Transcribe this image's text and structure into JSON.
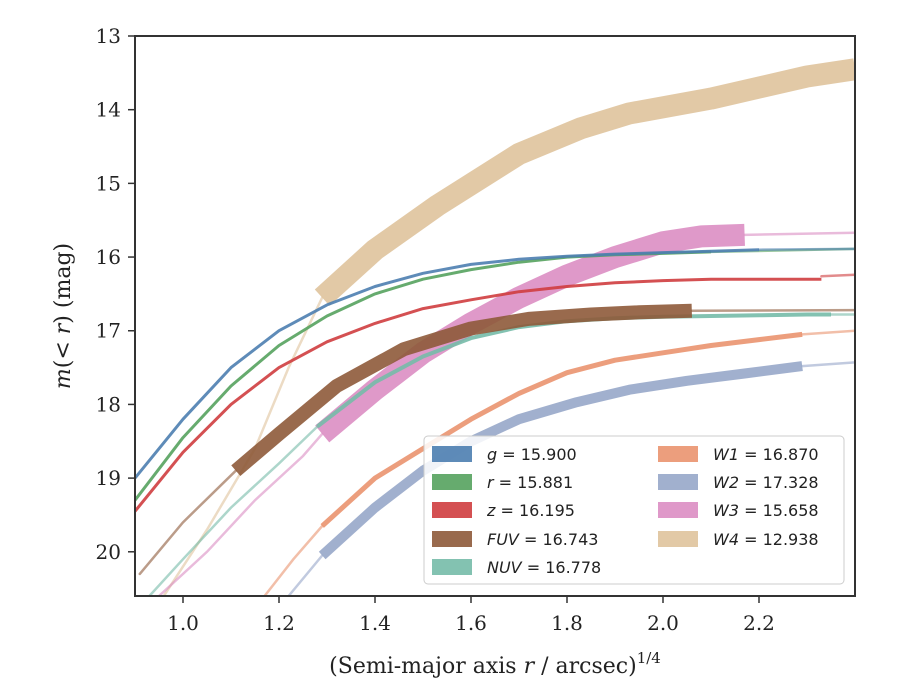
{
  "chart_data": {
    "type": "line",
    "xlabel": "(Semi-major axis r / arcsec)^1/4",
    "ylabel": "m(<r) (mag)",
    "xlim": [
      0.9,
      2.4
    ],
    "ylim": [
      20.6,
      13
    ],
    "y_inverted": true,
    "grid": false,
    "legend_position": "lower-right",
    "xticks": [
      1.0,
      1.2,
      1.4,
      1.6,
      1.8,
      2.0,
      2.2
    ],
    "xtick_labels": [
      "1.0",
      "1.2",
      "1.4",
      "1.6",
      "1.8",
      "2.0",
      "2.2"
    ],
    "yticks": [
      13,
      14,
      15,
      16,
      17,
      18,
      19,
      20
    ],
    "ytick_labels": [
      "13",
      "14",
      "15",
      "16",
      "17",
      "18",
      "19",
      "20"
    ],
    "series": [
      {
        "key": "g",
        "name": "g = 15.900",
        "color": "#4c7eb0",
        "band_width": 3,
        "x": [
          0.9,
          1.0,
          1.1,
          1.2,
          1.3,
          1.4,
          1.5,
          1.6,
          1.7,
          1.8,
          1.9,
          2.0,
          2.1,
          2.2
        ],
        "y": [
          19.0,
          18.2,
          17.5,
          17.0,
          16.65,
          16.4,
          16.22,
          16.1,
          16.03,
          15.99,
          15.96,
          15.94,
          15.92,
          15.9
        ],
        "ext_x": [
          2.2,
          2.4
        ],
        "ext_y": [
          15.9,
          15.89
        ]
      },
      {
        "key": "r",
        "name": "r = 15.881",
        "color": "#55a25e",
        "band_width": 3,
        "x": [
          0.9,
          1.0,
          1.1,
          1.2,
          1.3,
          1.4,
          1.5,
          1.6,
          1.7,
          1.8,
          1.9,
          2.0,
          2.1
        ],
        "y": [
          19.3,
          18.45,
          17.75,
          17.2,
          16.8,
          16.5,
          16.3,
          16.17,
          16.07,
          16.0,
          15.97,
          15.95,
          15.93
        ],
        "ext_x": [
          2.1,
          2.4
        ],
        "ext_y": [
          15.93,
          15.89
        ]
      },
      {
        "key": "z",
        "name": "z = 16.195",
        "color": "#cf3d3f",
        "band_width": 3,
        "x": [
          0.9,
          1.0,
          1.1,
          1.2,
          1.3,
          1.4,
          1.5,
          1.6,
          1.7,
          1.8,
          1.9,
          2.0,
          2.1,
          2.2,
          2.33
        ],
        "y": [
          19.45,
          18.65,
          18.0,
          17.5,
          17.15,
          16.9,
          16.7,
          16.58,
          16.47,
          16.4,
          16.35,
          16.32,
          16.3,
          16.3,
          16.3
        ],
        "ext_x": [
          2.33,
          2.4
        ],
        "ext_y": [
          16.26,
          16.24
        ]
      },
      {
        "key": "FUV",
        "name": "FUV = 16.743",
        "color": "#8e5a3a",
        "band_width": 14,
        "x": [
          1.11,
          1.2,
          1.32,
          1.46,
          1.6,
          1.72,
          1.85,
          1.95,
          2.06
        ],
        "y": [
          18.9,
          18.4,
          17.75,
          17.25,
          16.97,
          16.84,
          16.78,
          16.75,
          16.73
        ],
        "ext_x": [
          0.91,
          1.0,
          1.11
        ],
        "ext_y": [
          20.3,
          19.6,
          18.9
        ],
        "ext2_x": [
          2.06,
          2.4
        ],
        "ext2_y": [
          16.73,
          16.72
        ]
      },
      {
        "key": "NUV",
        "name": "NUV = 16.778",
        "color": "#76bba8",
        "band_width": 4,
        "x": [
          1.28,
          1.4,
          1.5,
          1.6,
          1.7,
          1.8,
          1.9,
          2.0,
          2.1,
          2.2,
          2.3,
          2.35
        ],
        "y": [
          18.3,
          17.7,
          17.35,
          17.1,
          16.95,
          16.87,
          16.83,
          16.81,
          16.8,
          16.79,
          16.78,
          16.78
        ],
        "ext_x": [
          0.93,
          1.0,
          1.1,
          1.2,
          1.28
        ],
        "ext_y": [
          20.6,
          20.1,
          19.4,
          18.8,
          18.3
        ],
        "ext2_x": [
          2.35,
          2.4
        ],
        "ext2_y": [
          16.78,
          16.78
        ]
      },
      {
        "key": "W1",
        "name": "W1 = 16.870",
        "color": "#ea946f",
        "band_width": 5,
        "x": [
          1.29,
          1.4,
          1.5,
          1.6,
          1.7,
          1.8,
          1.9,
          2.0,
          2.1,
          2.2,
          2.29
        ],
        "y": [
          19.65,
          19.0,
          18.6,
          18.2,
          17.85,
          17.57,
          17.4,
          17.3,
          17.2,
          17.12,
          17.05
        ],
        "ext_x": [
          1.17,
          1.23,
          1.29
        ],
        "ext_y": [
          20.6,
          20.1,
          19.65
        ],
        "ext2_x": [
          2.29,
          2.4
        ],
        "ext2_y": [
          17.05,
          17.0
        ]
      },
      {
        "key": "W2",
        "name": "W2 = 17.328",
        "color": "#97a7c9",
        "band_width": 10,
        "x": [
          1.29,
          1.4,
          1.5,
          1.6,
          1.7,
          1.82,
          1.93,
          2.05,
          2.17,
          2.29
        ],
        "y": [
          20.05,
          19.4,
          18.9,
          18.5,
          18.2,
          17.97,
          17.8,
          17.68,
          17.58,
          17.48
        ],
        "ext_x": [
          1.22,
          1.29
        ],
        "ext_y": [
          20.6,
          20.05
        ],
        "ext2_x": [
          2.29,
          2.4
        ],
        "ext2_y": [
          17.48,
          17.43
        ]
      },
      {
        "key": "W3",
        "name": "W3 = 15.658",
        "color": "#db8ec3",
        "band_width": 22,
        "x": [
          1.29,
          1.4,
          1.5,
          1.6,
          1.7,
          1.8,
          1.9,
          2.0,
          2.08,
          2.17
        ],
        "y": [
          18.4,
          17.8,
          17.3,
          16.9,
          16.55,
          16.25,
          16.0,
          15.8,
          15.72,
          15.7
        ],
        "ext_x": [
          0.95,
          1.05,
          1.15,
          1.25,
          1.29
        ],
        "ext_y": [
          20.6,
          20.0,
          19.3,
          18.7,
          18.4
        ],
        "ext2_x": [
          2.17,
          2.4
        ],
        "ext2_y": [
          15.7,
          15.67
        ]
      },
      {
        "key": "W4",
        "name": "W4 = 12.938",
        "color": "#dfc39c",
        "band_width": 22,
        "x": [
          1.29,
          1.4,
          1.53,
          1.7,
          1.83,
          1.93,
          2.1,
          2.3,
          2.4
        ],
        "y": [
          16.55,
          15.9,
          15.3,
          14.6,
          14.25,
          14.05,
          13.85,
          13.55,
          13.45
        ],
        "ext_x": [
          0.96,
          1.05,
          1.15,
          1.22,
          1.29
        ],
        "ext_y": [
          20.6,
          19.7,
          18.6,
          17.5,
          16.55
        ]
      }
    ]
  }
}
